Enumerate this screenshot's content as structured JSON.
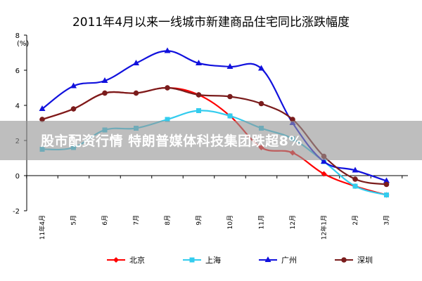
{
  "chart_data": {
    "type": "line",
    "title": "2011年4月以来一线城市新建商品住宅同比涨跌幅度",
    "unit_label": "(%)",
    "ylim": [
      -2,
      8
    ],
    "yticks": [
      -2,
      0,
      2,
      4,
      6,
      8
    ],
    "grid": false,
    "legend_position": "bottom",
    "x_labels": [
      "11年4月",
      "5月",
      "6月",
      "7月",
      "8月",
      "9月",
      "10月",
      "11月",
      "12月",
      "12年1月",
      "2月",
      "3月"
    ],
    "series": [
      {
        "name": "北京",
        "color": "#ff0000",
        "marker": "diamond",
        "values": [
          3.2,
          3.8,
          4.7,
          4.7,
          5.0,
          4.6,
          3.4,
          1.6,
          1.3,
          0.1,
          -0.6,
          -1.1
        ]
      },
      {
        "name": "上海",
        "color": "#33ccee",
        "marker": "square",
        "values": [
          1.5,
          1.6,
          2.6,
          2.7,
          3.2,
          3.7,
          3.4,
          2.7,
          2.1,
          0.8,
          -0.6,
          -1.1
        ]
      },
      {
        "name": "广州",
        "color": "#1111dd",
        "marker": "triangle",
        "values": [
          3.8,
          5.1,
          5.4,
          6.4,
          7.1,
          6.4,
          6.2,
          6.1,
          3.0,
          0.8,
          0.3,
          -0.3
        ]
      },
      {
        "name": "深圳",
        "color": "#7a1c1c",
        "marker": "circle",
        "values": [
          3.2,
          3.8,
          4.7,
          4.7,
          5.0,
          4.6,
          4.5,
          4.1,
          3.2,
          1.1,
          -0.2,
          -0.5
        ]
      }
    ]
  },
  "overlay": {
    "headline": "股市配资行情 特朗普媒体科技集团跌超8%"
  }
}
